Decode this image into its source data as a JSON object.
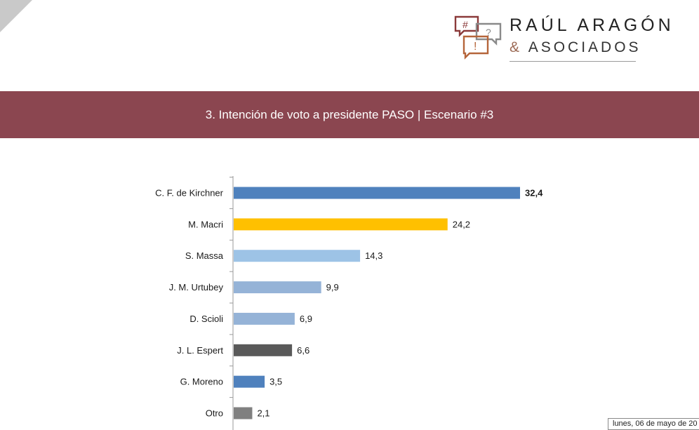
{
  "brand": {
    "line1": "RAÚL ARAGÓN",
    "ampersand": "&",
    "line2": "ASOCIADOS",
    "icon_marks": [
      "#",
      "?",
      "!"
    ],
    "colors": {
      "hash": "#8b3a3a",
      "question": "#8a8a8a",
      "exclaim": "#b5653a"
    }
  },
  "banner": {
    "title": "3. Intención de voto a presidente PASO | Escenario #3",
    "color": "#8b4650"
  },
  "chart_data": {
    "type": "bar",
    "orientation": "horizontal",
    "categories": [
      "C. F. de Kirchner",
      "M. Macri",
      "S. Massa",
      "J. M. Urtubey",
      "D. Scioli",
      "J. L. Espert",
      "G. Moreno",
      "Otro"
    ],
    "values": [
      32.4,
      24.2,
      14.3,
      9.9,
      6.9,
      6.6,
      3.5,
      2.1
    ],
    "value_labels": [
      "32,4",
      "24,2",
      "14,3",
      "9,9",
      "6,9",
      "6,6",
      "3,5",
      "2,1"
    ],
    "bar_colors": [
      "#4f81bd",
      "#ffc000",
      "#9dc3e6",
      "#95b3d7",
      "#95b3d7",
      "#595959",
      "#4f81bd",
      "#808080"
    ],
    "bold_labels": [
      true,
      false,
      false,
      false,
      false,
      false,
      false,
      false
    ],
    "xlim": [
      0,
      32.4
    ],
    "grid": false,
    "legend": "none"
  },
  "footer": {
    "date_text": "lunes, 06 de mayo de 20"
  }
}
